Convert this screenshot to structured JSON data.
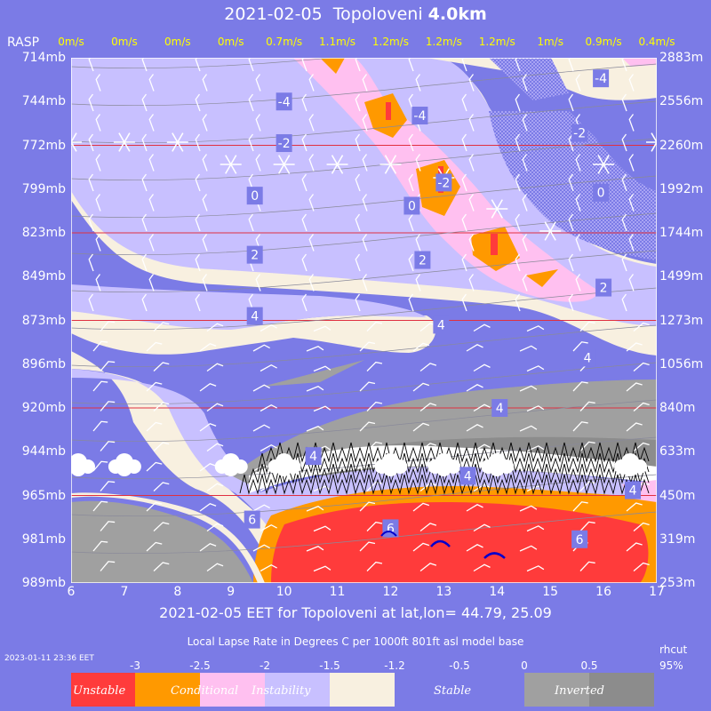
{
  "header": {
    "date": "2021-02-05",
    "location": "Topoloveni",
    "height": "4.0km"
  },
  "rasp_label": "RASP",
  "winds": [
    "0m/s",
    "0m/s",
    "0m/s",
    "0m/s",
    "0.7m/s",
    "1.1m/s",
    "1.2m/s",
    "1.2m/s",
    "1.2m/s",
    "1m/s",
    "0.9m/s",
    "0.4m/s"
  ],
  "subtitle": "2021-02-05 EET for Topoloveni at lat,lon= 44.79, 25.09",
  "lapse_caption": "Local Lapse Rate in Degrees C per 1000ft  801ft asl model base",
  "rhcut_label": "rhcut",
  "rhcut_value": "95%",
  "timestamp": "2023-01-11 23:36 EET",
  "colors": {
    "background": "#7b7be6",
    "unstable": "#ff3b3b",
    "conditional": "#ff9900",
    "pink": "#ffc0f0",
    "lavender": "#c8c0ff",
    "cream": "#f8f0e0",
    "stable": "#7b7be6",
    "inverted": "#a0a0a0",
    "inverted_dark": "#8c8c8c",
    "wind_label": "#ffff00"
  },
  "colorbar": {
    "ticks": [
      "-3",
      "-2.5",
      "-2",
      "-1.5",
      "-1.2",
      "-0.5",
      "0",
      "0.5"
    ],
    "words": [
      "Unstable",
      "Conditional",
      "Instability",
      "Stable",
      "Inverted"
    ]
  },
  "chart_data": {
    "type": "heatmap",
    "title": "2021-02-05  Topoloveni 4.0km",
    "x_ticks": [
      6,
      7,
      8,
      9,
      10,
      11,
      12,
      13,
      14,
      15,
      16,
      17
    ],
    "xlim": [
      6,
      17
    ],
    "pressure_levels": [
      "714mb",
      "744mb",
      "772mb",
      "799mb",
      "823mb",
      "849mb",
      "873mb",
      "896mb",
      "920mb",
      "944mb",
      "965mb",
      "981mb",
      "989mb"
    ],
    "height_levels": [
      "2883m",
      "2556m",
      "2260m",
      "1992m",
      "1744m",
      "1499m",
      "1273m",
      "1056m",
      "840m",
      "633m",
      "450m",
      "319m",
      "253m"
    ],
    "contour_labels": [
      {
        "v": "-4",
        "x": 10.0,
        "lvl": 1.0
      },
      {
        "v": "-4",
        "x": 12.55,
        "lvl": 1.32
      },
      {
        "v": "-4",
        "x": 15.95,
        "lvl": 0.47
      },
      {
        "v": "-2",
        "x": 10.0,
        "lvl": 1.95
      },
      {
        "v": "-2",
        "x": 15.55,
        "lvl": 1.72
      },
      {
        "v": "-2",
        "x": 13.0,
        "lvl": 2.85
      },
      {
        "v": "0",
        "x": 9.45,
        "lvl": 3.15
      },
      {
        "v": "0",
        "x": 12.4,
        "lvl": 3.38
      },
      {
        "v": "0",
        "x": 15.95,
        "lvl": 3.08
      },
      {
        "v": "2",
        "x": 9.45,
        "lvl": 4.5
      },
      {
        "v": "2",
        "x": 12.6,
        "lvl": 4.62
      },
      {
        "v": "2",
        "x": 16.0,
        "lvl": 5.25
      },
      {
        "v": "4",
        "x": 9.45,
        "lvl": 5.9
      },
      {
        "v": "4",
        "x": 12.95,
        "lvl": 6.1
      },
      {
        "v": "4",
        "x": 15.7,
        "lvl": 6.85
      },
      {
        "v": "4",
        "x": 14.05,
        "lvl": 8.0
      },
      {
        "v": "4",
        "x": 10.55,
        "lvl": 9.1
      },
      {
        "v": "4",
        "x": 13.45,
        "lvl": 9.55
      },
      {
        "v": "4",
        "x": 16.55,
        "lvl": 9.88
      },
      {
        "v": "6",
        "x": 9.4,
        "lvl": 10.55
      },
      {
        "v": "6",
        "x": 12.0,
        "lvl": 10.75
      },
      {
        "v": "6",
        "x": 15.55,
        "lvl": 11.0
      }
    ],
    "snow_x": [
      6.0,
      7.0,
      8.0,
      9.0,
      10.0,
      11.0,
      12.0,
      13.0,
      14.0,
      15.0,
      16.0,
      17.0
    ],
    "cloud_x": [
      6.0,
      7.0,
      9.0,
      10.0,
      12.0,
      13.0,
      14.0,
      16.5
    ]
  }
}
